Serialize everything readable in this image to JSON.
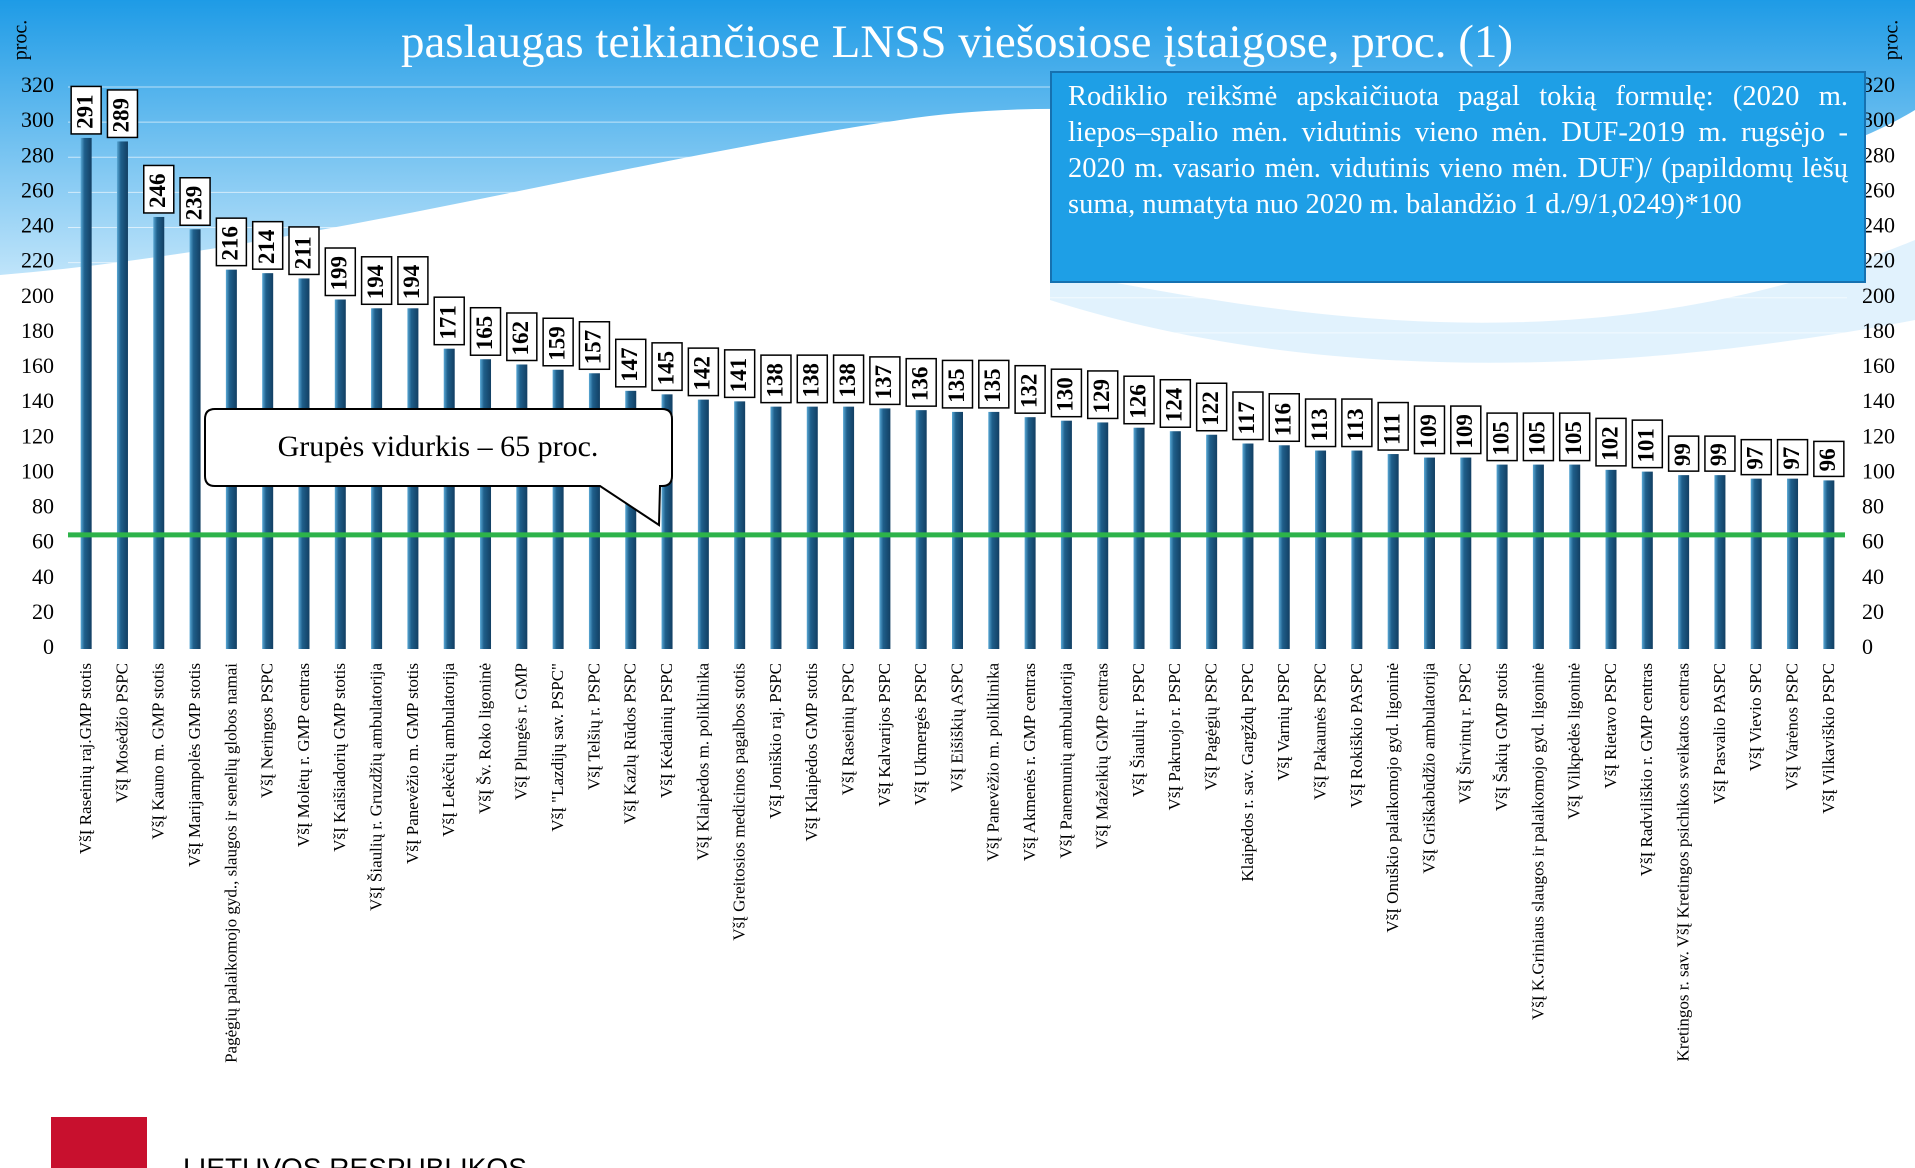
{
  "chart_data": {
    "type": "bar",
    "title": "paslaugas teikiančiose LNSS viešosiose įstaigose, proc. (1)",
    "y_label": "proc.",
    "categories": [
      "VšĮ Raseinių raj.GMP stotis",
      "VšĮ Mosėdžio PSPC",
      "VšĮ Kauno m. GMP stotis",
      "VšĮ Marijampolės GMP stotis",
      "Pagėgių palaikomojo gyd., slaugos ir senelių globos namai",
      "VšĮ Neringos PSPC",
      "VšĮ Molėtų r. GMP centras",
      "VšĮ Kaišiadorių GMP stotis",
      "VšĮ Šiaulių r. Gruzdžių ambulatorija",
      "VšĮ Panevėžio m. GMP stotis",
      "VšĮ Lekėčių ambulatorija",
      "VšĮ Šv. Roko ligoninė",
      "VšĮ Plungės r. GMP",
      "VšĮ \"Lazdijų sav. PSPC\"",
      "VšĮ Telšių r. PSPC",
      "VšĮ Kazlų Rūdos PSPC",
      "VšĮ Kėdainių PSPC",
      "VšĮ Klaipėdos m. poliklinika",
      "VšĮ Greitosios medicinos pagalbos stotis",
      "VšĮ Joniškio raj. PSPC",
      "VšĮ Klaipėdos GMP stotis",
      "VšĮ Raseinių PSPC",
      "VšĮ Kalvarijos PSPC",
      "VšĮ Ukmergės PSPC",
      "VšĮ Eišiškių ASPC",
      "VšĮ Panevėžio m. poliklinika",
      "VšĮ Akmenės r. GMP centras",
      "VšĮ Panemunių ambulatorija",
      "VšĮ Mažeikių GMP centras",
      "VšĮ Šiaulių r. PSPC",
      "VšĮ Pakruojo r. PSPC",
      "VšĮ Pagėgių PSPC",
      "Klaipėdos r. sav. Gargždų PSPC",
      "VšĮ Varnių PSPC",
      "VšĮ Pakaunės PSPC",
      "VšĮ Rokiškio PASPC",
      "VšĮ Onuškio palaikomojo gyd. ligoninė",
      "VšĮ Griškabūdžio ambulatorija",
      "VšĮ Širvintų r. PSPC",
      "VšĮ Šakių GMP stotis",
      "VšĮ K.Griniaus slaugos ir palaikomojo gyd. ligoninė",
      "VšĮ Vilkpėdės ligoninė",
      "VšĮ Rietavo PSPC",
      "VšĮ Radviliškio r. GMP centras",
      "Kretingos r. sav. VšĮ Kretingos psichikos sveikatos centras",
      "VšĮ Pasvalio PASPC",
      "VšĮ Vievio SPC",
      "VšĮ Varėnos PSPC",
      "VšĮ Vilkaviškio PSPC"
    ],
    "values": [
      291,
      289,
      246,
      239,
      216,
      214,
      211,
      199,
      194,
      194,
      171,
      165,
      162,
      159,
      157,
      147,
      145,
      142,
      141,
      138,
      138,
      138,
      137,
      136,
      135,
      135,
      132,
      130,
      129,
      126,
      124,
      122,
      117,
      116,
      113,
      113,
      111,
      109,
      109,
      105,
      105,
      105,
      102,
      101,
      99,
      99,
      97,
      97,
      96
    ],
    "color": "#1f5f8b",
    "ylim": [
      0,
      320
    ],
    "yticks": [
      0,
      20,
      40,
      60,
      80,
      100,
      120,
      140,
      160,
      180,
      200,
      220,
      240,
      260,
      280,
      300,
      320
    ],
    "average_line": {
      "value": 65,
      "label": "Grupės vidurkis – 65 proc.",
      "color": "#2db34a"
    },
    "annotation": "Rodiklio reikšmė apskaičiuota pagal tokią formulę: (2020 m. liepos–spalio mėn. vidutinis vieno mėn. DUF-2019 m. rugsėjo - 2020 m. vasario mėn. vidutinis vieno mėn. DUF)/ (papildomų lėšų suma, numatyta nuo 2020 m. balandžio 1 d./9/1,0249)*100"
  },
  "footer": {
    "logo_text": "LIETUVOS RESPUBLIKOS"
  }
}
